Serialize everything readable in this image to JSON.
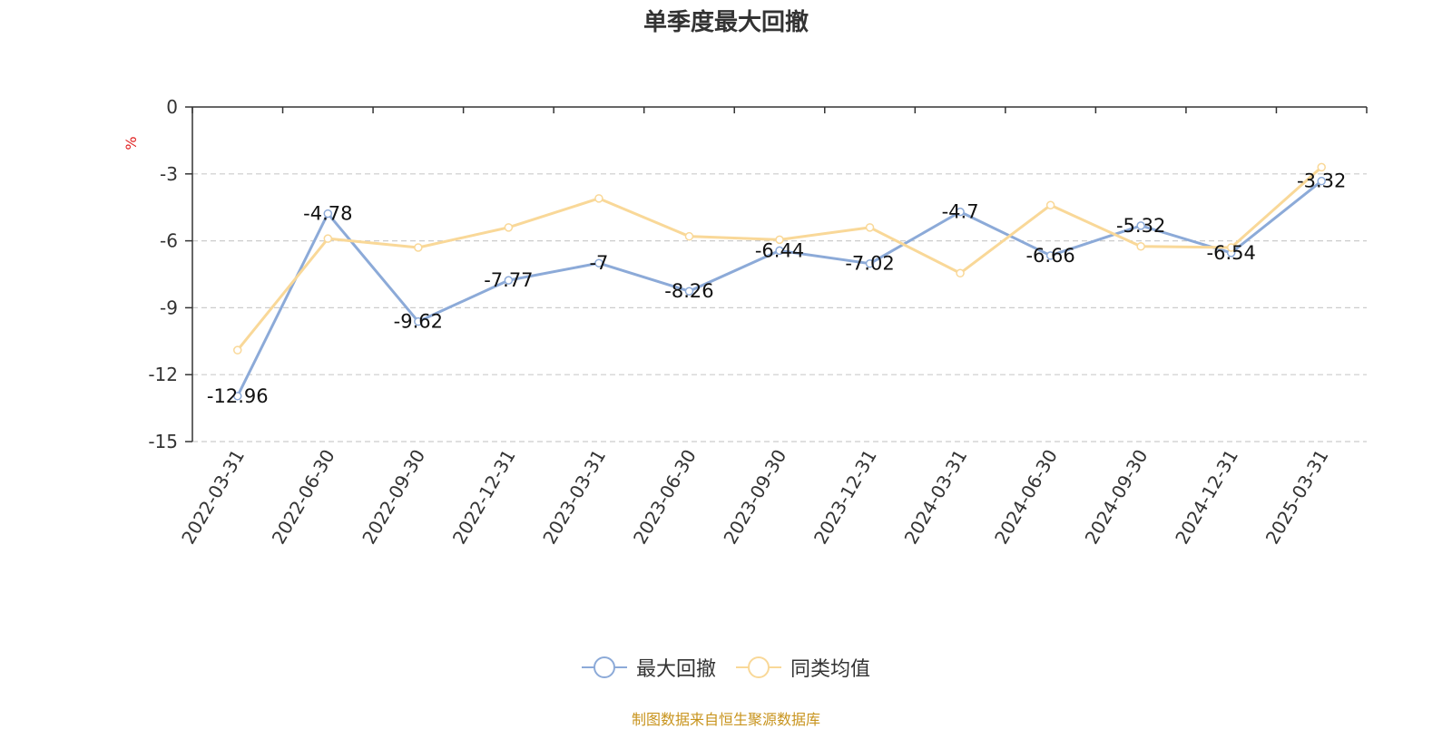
{
  "title": "单季度最大回撤",
  "source": "制图数据来自恒生聚源数据库",
  "chart_data": {
    "type": "line",
    "ylabel": "%",
    "ylim": [
      -15,
      0
    ],
    "yticks": [
      0,
      -3,
      -6,
      -9,
      -12,
      -15
    ],
    "grid": true,
    "legend_position": "bottom",
    "categories": [
      "2022-03-31",
      "2022-06-30",
      "2022-09-30",
      "2022-12-31",
      "2023-03-31",
      "2023-06-30",
      "2023-09-30",
      "2023-12-31",
      "2024-03-31",
      "2024-06-30",
      "2024-09-30",
      "2024-12-31",
      "2025-03-31"
    ],
    "series": [
      {
        "name": "最大回撤",
        "color": "#8caad8",
        "labels": true,
        "values": [
          -12.96,
          -4.78,
          -9.62,
          -7.77,
          -7,
          -8.26,
          -6.44,
          -7.02,
          -4.7,
          -6.66,
          -5.32,
          -6.54,
          -3.32
        ]
      },
      {
        "name": "同类均值",
        "color": "#f9d898",
        "labels": false,
        "values": [
          -10.9,
          -5.9,
          -6.3,
          -5.4,
          -4.1,
          -5.8,
          -5.95,
          -5.4,
          -7.45,
          -4.4,
          -6.25,
          -6.3,
          -2.7
        ]
      }
    ]
  }
}
